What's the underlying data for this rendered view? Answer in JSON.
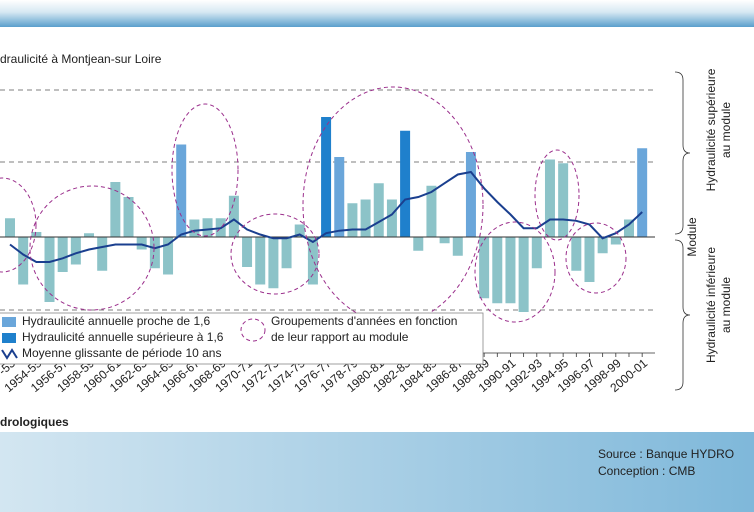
{
  "title": "draulicité à Montjean-sur Loire",
  "footer_title": "drologiques",
  "source": "Source : Banque HYDRO",
  "conception": "Conception : CMB",
  "chart_data": {
    "type": "bar",
    "categories": [
      "-53",
      null,
      "1954-55",
      null,
      "1956-57",
      null,
      "1958-59",
      null,
      "1960-61",
      null,
      "1962-63",
      null,
      "1964-65",
      null,
      "1966-67",
      null,
      "1968-69",
      null,
      "1970-71",
      null,
      "1972-73",
      null,
      "1974-75",
      null,
      "1976-77",
      null,
      "1978-79",
      null,
      "1980-81",
      null,
      "1982-83",
      null,
      "1984-85",
      null,
      "1986-87",
      null,
      "1988-89",
      null,
      "1990-91",
      null,
      "1992-93",
      null,
      "1994-95",
      null,
      "1996-97",
      null,
      "1998-99",
      null,
      "2000-01"
    ],
    "ylim": [
      0.08,
      2.256
    ],
    "module_value": 1,
    "series": [
      {
        "type": "bar",
        "values": [
          1.15,
          0.62,
          1.04,
          0.48,
          0.72,
          0.78,
          1.03,
          0.73,
          1.44,
          1.32,
          0.9,
          0.75,
          0.7,
          1.74,
          1.14,
          1.15,
          1.15,
          1.33,
          0.76,
          0.62,
          0.59,
          0.75,
          1.1,
          0.62,
          1.96,
          1.64,
          1.27,
          1.3,
          1.43,
          1.3,
          1.85,
          0.89,
          1.41,
          0.95,
          0.85,
          1.68,
          0.51,
          0.47,
          0.47,
          0.4,
          0.75,
          1.62,
          1.59,
          0.73,
          0.64,
          0.87,
          0.94,
          1.14,
          1.71
        ],
        "colors": [
          "#8cc3c8",
          "#8cc3c8",
          "#8cc3c8",
          "#8cc3c8",
          "#8cc3c8",
          "#8cc3c8",
          "#8cc3c8",
          "#8cc3c8",
          "#8cc3c8",
          "#8cc3c8",
          "#8cc3c8",
          "#8cc3c8",
          "#8cc3c8",
          "#6aa6da",
          "#8cc3c8",
          "#8cc3c8",
          "#8cc3c8",
          "#8cc3c8",
          "#8cc3c8",
          "#8cc3c8",
          "#8cc3c8",
          "#8cc3c8",
          "#8cc3c8",
          "#8cc3c8",
          "#1f80cc",
          "#6aa6da",
          "#8cc3c8",
          "#8cc3c8",
          "#8cc3c8",
          "#8cc3c8",
          "#1f80cc",
          "#8cc3c8",
          "#8cc3c8",
          "#8cc3c8",
          "#8cc3c8",
          "#6aa6da",
          "#8cc3c8",
          "#8cc3c8",
          "#8cc3c8",
          "#8cc3c8",
          "#8cc3c8",
          "#8cc3c8",
          "#8cc3c8",
          "#8cc3c8",
          "#8cc3c8",
          "#8cc3c8",
          "#8cc3c8",
          "#8cc3c8",
          "#6aa6da"
        ]
      },
      {
        "type": "line",
        "name": "Moyenne glissante de période 10 ans",
        "color": "#1a3f8f",
        "values": [
          0.94,
          0.86,
          0.8,
          0.8,
          0.83,
          0.87,
          0.9,
          0.92,
          0.94,
          0.94,
          0.94,
          0.91,
          0.94,
          1.02,
          1.05,
          1.06,
          1.07,
          1.14,
          1.06,
          1.02,
          0.99,
          0.99,
          1.02,
          0.96,
          1.03,
          1.05,
          1.06,
          1.06,
          1.12,
          1.18,
          1.3,
          1.32,
          1.36,
          1.43,
          1.5,
          1.52,
          1.39,
          1.28,
          1.18,
          1.07,
          1.07,
          1.14,
          1.14,
          1.13,
          1.1,
          0.99,
          1.03,
          1.1,
          1.2
        ]
      }
    ],
    "legend": [
      {
        "label": "Hydraulicité annuelle proche de 1,6",
        "color": "#6aa6da"
      },
      {
        "label": "Hydraulicité annuelle supérieure à 1,6",
        "color": "#1f80cc"
      }
    ],
    "grouping_label": [
      "Groupements d'années en fonction",
      "de leur rapport au module"
    ],
    "module_label": "Module",
    "upper_label": [
      "Hydraulicité supérieure",
      "au module"
    ],
    "lower_label": [
      "Hydraulicité inférieure",
      "au module"
    ]
  }
}
